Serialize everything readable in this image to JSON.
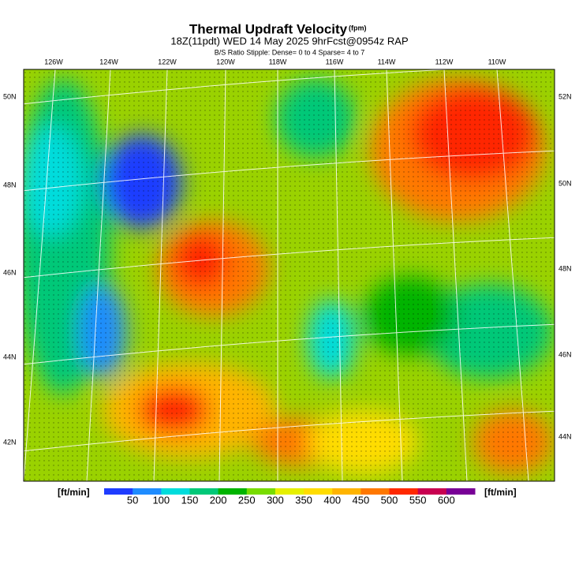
{
  "header": {
    "title": "Thermal Updraft Velocity",
    "units": "(fpm)",
    "subtitle": "18Z(11pdt) WED 14 May 2025 9hrFcst@0954z RAP",
    "stipple_note": "B/S Ratio Stipple:  Dense= 0 to 4  Sparse= 4 to 7"
  },
  "map": {
    "top_labels": [
      "126W",
      "124W",
      "122W",
      "120W",
      "118W",
      "116W",
      "114W",
      "112W",
      "110W"
    ],
    "left_labels": [
      "50N",
      "48N",
      "46N",
      "44N",
      "42N"
    ],
    "right_labels": [
      "52N",
      "50N",
      "48N",
      "46N",
      "44N"
    ]
  },
  "colorbar": {
    "unit_left": "[ft/min]",
    "unit_right": "[ft/min]",
    "ticks": [
      50,
      100,
      150,
      200,
      250,
      300,
      350,
      400,
      450,
      500,
      550,
      600
    ],
    "colors": [
      "#1e3cff",
      "#1e8cff",
      "#00dcdc",
      "#00c878",
      "#00b400",
      "#78dc00",
      "#e6f000",
      "#ffdc00",
      "#ffb400",
      "#ff7800",
      "#ff2800",
      "#c80050",
      "#780096"
    ]
  }
}
